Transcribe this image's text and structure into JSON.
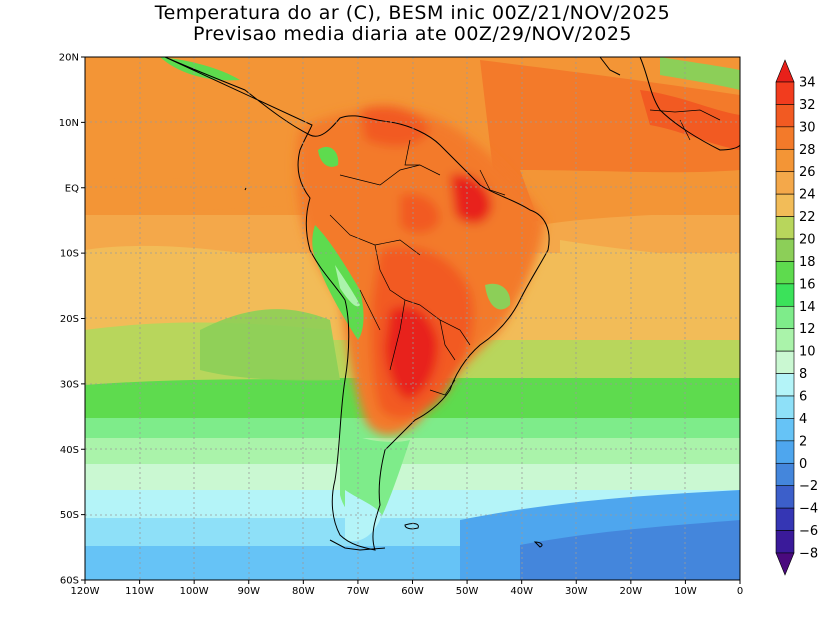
{
  "title": {
    "line1": "Temperatura do ar (C), BESM inic 00Z/21/NOV/2025",
    "line2": "Previsao media diaria ate 00Z/29/NOV/2025"
  },
  "axes": {
    "lat_labels": [
      "20N",
      "10N",
      "EQ",
      "10S",
      "20S",
      "30S",
      "40S",
      "50S",
      "60S"
    ],
    "lat_values": [
      20,
      10,
      0,
      -10,
      -20,
      -30,
      -40,
      -50,
      -60
    ],
    "lon_labels": [
      "120W",
      "110W",
      "100W",
      "90W",
      "80W",
      "70W",
      "60W",
      "50W",
      "40W",
      "30W",
      "20W",
      "10W",
      "0"
    ],
    "lon_values": [
      -120,
      -110,
      -100,
      -90,
      -80,
      -70,
      -60,
      -50,
      -40,
      -30,
      -20,
      -10,
      0
    ],
    "extent": {
      "lon_min": -120,
      "lon_max": 0,
      "lat_min": -60,
      "lat_max": 20
    }
  },
  "colorbar": {
    "unit": "C",
    "levels": [
      "34",
      "32",
      "30",
      "28",
      "26",
      "24",
      "22",
      "20",
      "18",
      "16",
      "14",
      "12",
      "10",
      "8",
      "6",
      "4",
      "2",
      "0",
      "−2",
      "−4",
      "−6",
      "−8"
    ],
    "colors": [
      "#e8201a",
      "#f23c1e",
      "#f25a22",
      "#f37a2a",
      "#f39536",
      "#f4a84a",
      "#f2bc58",
      "#b8d65c",
      "#8ccf58",
      "#5edb4e",
      "#3be25a",
      "#7eec8a",
      "#aaf3aa",
      "#caf8d2",
      "#b4f4f8",
      "#8ee0f8",
      "#66c3f6",
      "#4ea6ee",
      "#4486dc",
      "#3c5fca",
      "#3536b4",
      "#3a1a9a",
      "#4a0a7e"
    ],
    "top_color": "#e8201a",
    "bottom_color": "#4a0a7e"
  }
}
